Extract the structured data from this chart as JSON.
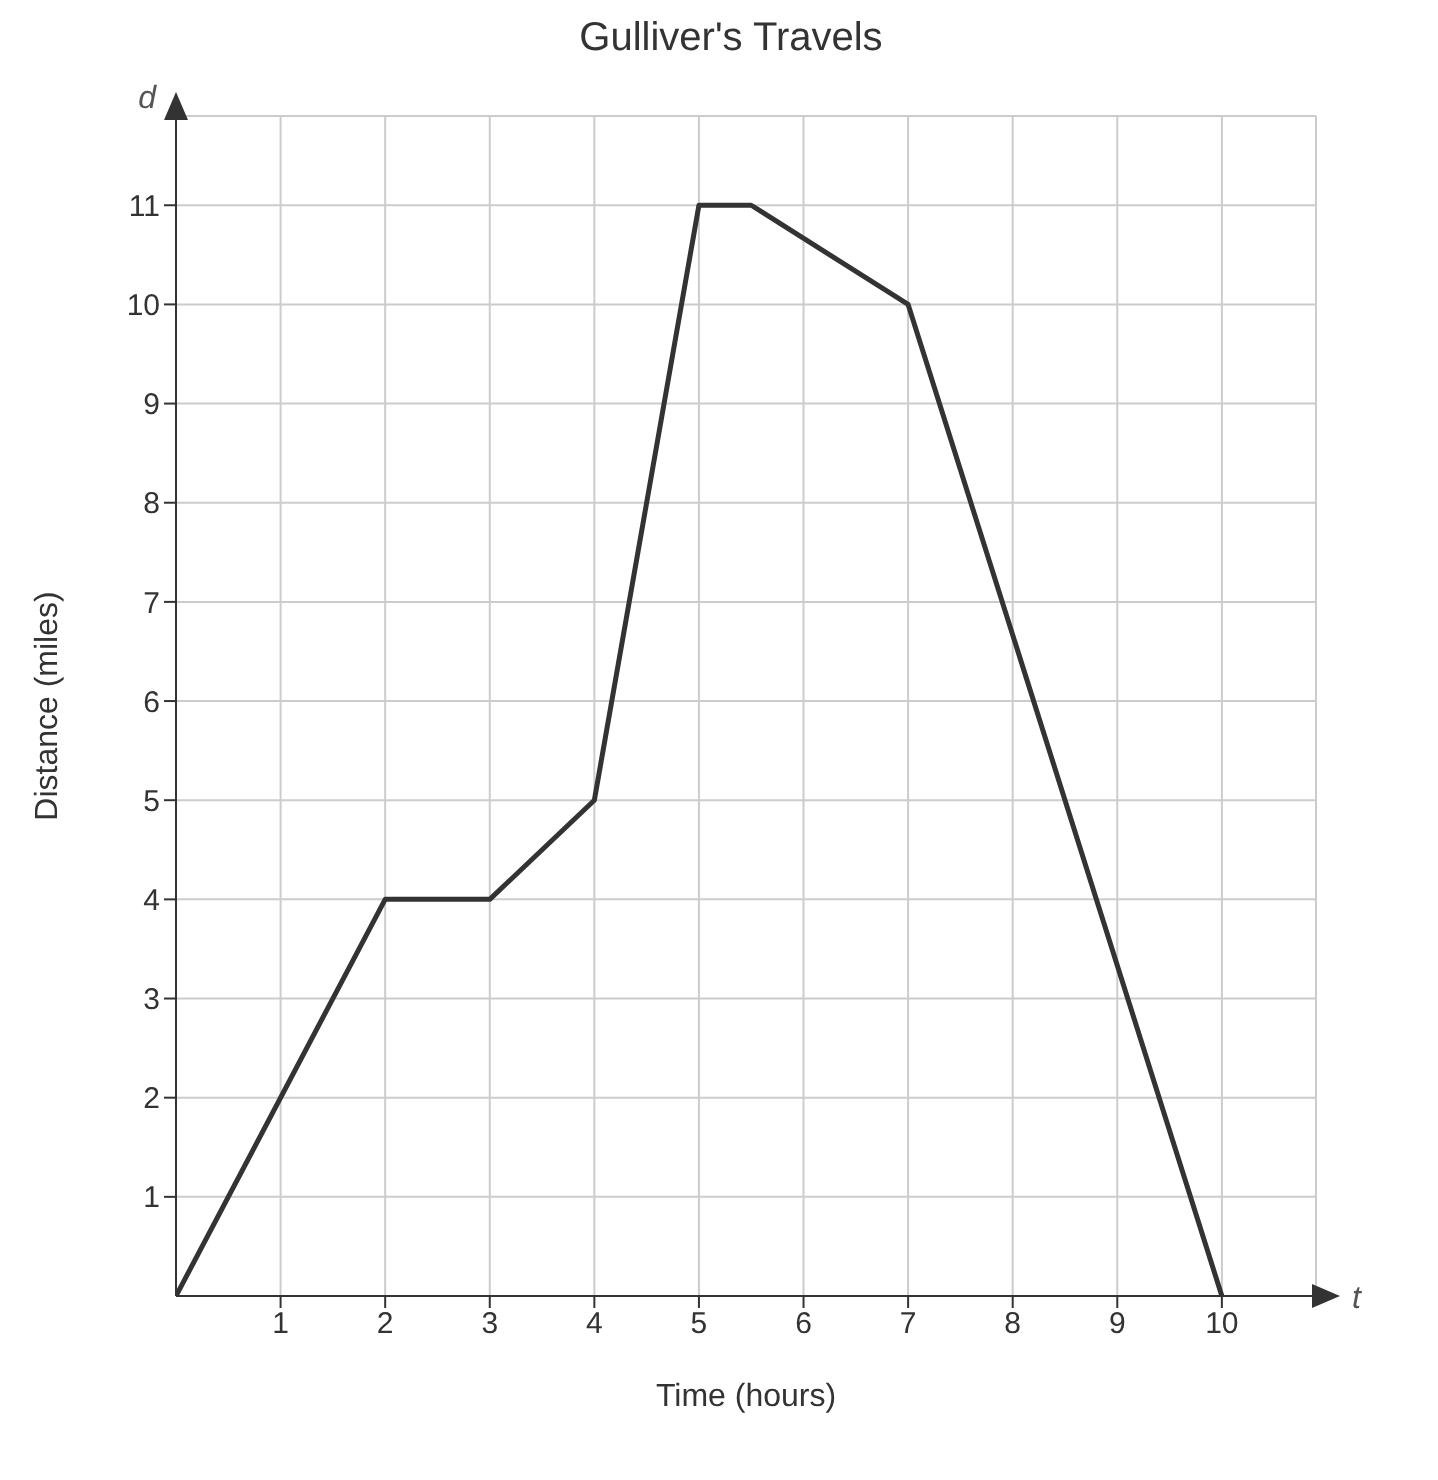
{
  "chart_data": {
    "type": "line",
    "title": "Gulliver's Travels",
    "xlabel": "Time (hours)",
    "ylabel": "Distance (miles)",
    "annotations": [
      "d",
      "t"
    ],
    "x": [
      0,
      2,
      3,
      4,
      5,
      5.5,
      7,
      10
    ],
    "series": [
      {
        "color": "#333333",
        "values": [
          0,
          4,
          4,
          5,
          11,
          11,
          10,
          0
        ]
      }
    ],
    "xlim": [
      0,
      10.9
    ],
    "xticks": [
      1,
      2,
      3,
      4,
      5,
      6,
      7,
      8,
      9,
      10
    ],
    "ylim": [
      0,
      11.9
    ],
    "yticks": [
      1,
      2,
      3,
      4,
      5,
      6,
      7,
      8,
      9,
      10,
      11
    ],
    "grid": true,
    "marker": "none",
    "line_style": "solid"
  }
}
